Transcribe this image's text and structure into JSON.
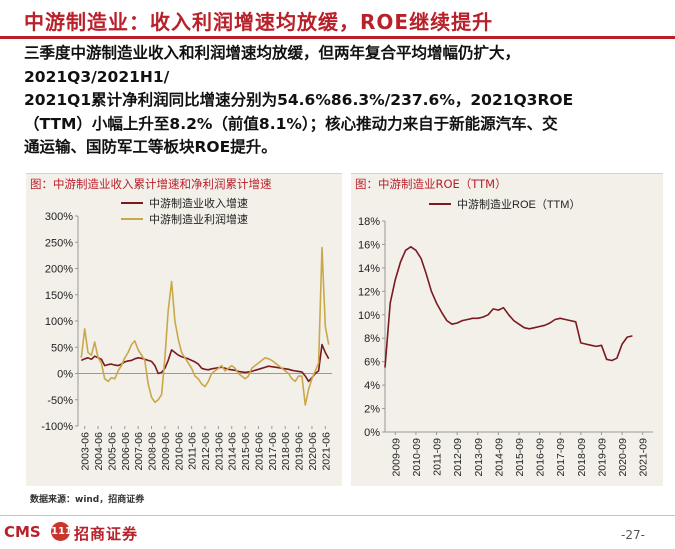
{
  "slide": {
    "title": "中游制造业：收入利润增速均放缓，ROE继续提升",
    "body_lines": [
      "三季度中游制造业收入和利润增速均放缓，但两年复合平均增幅仍扩大，",
      "2021Q3/2021H1/",
      "2021Q1累计净利润同比增速分别为54.6%86.3%/237.6%，2021Q3ROE",
      "（TTM）小幅上升至8.2%（前值8.1%）；核心推动力来自于新能源汽车、交",
      "通运输、国防军工等板块ROE提升。"
    ],
    "source": "数据来源：wind，招商证券",
    "logo_text": "CMS",
    "logo_badge": "111",
    "logo_cn": "招商证券",
    "page_number": "-27-"
  },
  "colors": {
    "accent": "#b8202a",
    "revenue": "#7a1a1f",
    "profit": "#c9a84a",
    "roe": "#7a1a1f",
    "panel_bg": "#f3f0ea"
  },
  "chart_data": [
    {
      "type": "line",
      "title": "图：中游制造业收入累计增速和净利润累计增速",
      "x_ticks": [
        "2003-06",
        "2004-06",
        "2005-06",
        "2006-06",
        "2007-06",
        "2008-06",
        "2009-06",
        "2010-06",
        "2011-06",
        "2012-06",
        "2013-06",
        "2014-06",
        "2015-06",
        "2016-06",
        "2017-06",
        "2018-06",
        "2019-06",
        "2020-06",
        "2021-06"
      ],
      "ylim": [
        -100,
        300
      ],
      "y_ticks": [
        -100,
        -50,
        0,
        50,
        100,
        150,
        200,
        250,
        300
      ],
      "y_tick_labels": [
        "-100%",
        "-50%",
        "0%",
        "50%",
        "100%",
        "150%",
        "200%",
        "250%",
        "300%"
      ],
      "legend_position": "top",
      "series": [
        {
          "name": "中游制造业收入增速",
          "x": [
            2003.25,
            2003.5,
            2003.75,
            2004,
            2004.25,
            2004.5,
            2004.75,
            2005,
            2005.25,
            2005.5,
            2005.75,
            2006,
            2006.25,
            2006.5,
            2006.75,
            2007,
            2007.25,
            2007.5,
            2007.75,
            2008,
            2008.25,
            2008.5,
            2008.75,
            2009,
            2009.25,
            2009.5,
            2009.75,
            2010,
            2010.25,
            2010.5,
            2010.75,
            2011,
            2011.25,
            2011.5,
            2011.75,
            2012,
            2012.25,
            2012.5,
            2012.75,
            2013,
            2013.25,
            2013.5,
            2013.75,
            2014,
            2014.25,
            2014.5,
            2014.75,
            2015,
            2015.25,
            2015.5,
            2015.75,
            2016,
            2016.25,
            2016.5,
            2016.75,
            2017,
            2017.25,
            2017.5,
            2017.75,
            2018,
            2018.25,
            2018.5,
            2018.75,
            2019,
            2019.25,
            2019.5,
            2019.75,
            2020,
            2020.25,
            2020.5,
            2020.75,
            2021,
            2021.25,
            2021.5,
            2021.75
          ],
          "values": [
            25,
            28,
            30,
            27,
            33,
            30,
            27,
            15,
            17,
            18,
            16,
            15,
            18,
            22,
            24,
            25,
            28,
            30,
            29,
            27,
            25,
            23,
            15,
            0,
            2,
            10,
            25,
            45,
            40,
            35,
            32,
            30,
            28,
            25,
            22,
            18,
            10,
            8,
            7,
            9,
            10,
            11,
            12,
            10,
            8,
            7,
            6,
            4,
            3,
            2,
            3,
            4,
            6,
            8,
            10,
            12,
            14,
            13,
            12,
            11,
            10,
            9,
            8,
            6,
            5,
            4,
            3,
            -5,
            -15,
            -8,
            0,
            5,
            55,
            40,
            28
          ]
        },
        {
          "name": "中游制造业利润增速",
          "x": [
            2003.25,
            2003.5,
            2003.75,
            2004,
            2004.25,
            2004.5,
            2004.75,
            2005,
            2005.25,
            2005.5,
            2005.75,
            2006,
            2006.25,
            2006.5,
            2006.75,
            2007,
            2007.25,
            2007.5,
            2007.75,
            2008,
            2008.25,
            2008.5,
            2008.75,
            2009,
            2009.25,
            2009.5,
            2009.75,
            2010,
            2010.25,
            2010.5,
            2010.75,
            2011,
            2011.25,
            2011.5,
            2011.75,
            2012,
            2012.25,
            2012.5,
            2012.75,
            2013,
            2013.25,
            2013.5,
            2013.75,
            2014,
            2014.25,
            2014.5,
            2014.75,
            2015,
            2015.25,
            2015.5,
            2015.75,
            2016,
            2016.25,
            2016.5,
            2016.75,
            2017,
            2017.25,
            2017.5,
            2017.75,
            2018,
            2018.25,
            2018.5,
            2018.75,
            2019,
            2019.25,
            2019.5,
            2019.75,
            2020,
            2020.25,
            2020.5,
            2020.75,
            2021,
            2021.25,
            2021.5,
            2021.75
          ],
          "values": [
            30,
            85,
            40,
            35,
            60,
            30,
            20,
            -10,
            -15,
            -8,
            -10,
            5,
            15,
            30,
            40,
            55,
            62,
            45,
            35,
            25,
            -20,
            -45,
            -55,
            -50,
            -40,
            30,
            120,
            175,
            100,
            65,
            40,
            30,
            20,
            10,
            -5,
            -10,
            -20,
            -25,
            -15,
            0,
            5,
            10,
            15,
            5,
            10,
            15,
            10,
            0,
            -5,
            -10,
            -5,
            10,
            15,
            20,
            25,
            30,
            28,
            25,
            20,
            15,
            10,
            5,
            0,
            -10,
            -15,
            -5,
            -5,
            -60,
            -30,
            -10,
            5,
            20,
            240,
            90,
            55
          ]
        }
      ]
    },
    {
      "type": "line",
      "title": "图：中游制造业ROE（TTM）",
      "x_ticks": [
        "2009-09",
        "2010-09",
        "2011-09",
        "2012-09",
        "2013-09",
        "2014-09",
        "2015-09",
        "2016-09",
        "2017-09",
        "2018-09",
        "2019-09",
        "2020-09",
        "2021-09"
      ],
      "ylim": [
        0,
        18
      ],
      "y_ticks": [
        0,
        2,
        4,
        6,
        8,
        10,
        12,
        14,
        16,
        18
      ],
      "y_tick_labels": [
        "0%",
        "2%",
        "4%",
        "6%",
        "8%",
        "10%",
        "12%",
        "14%",
        "16%",
        "18%"
      ],
      "legend_position": "top",
      "series": [
        {
          "name": "中游制造业ROE（TTM）",
          "x": [
            2009.75,
            2010,
            2010.25,
            2010.5,
            2010.75,
            2011,
            2011.25,
            2011.5,
            2011.75,
            2012,
            2012.25,
            2012.5,
            2012.75,
            2013,
            2013.25,
            2013.5,
            2013.75,
            2014,
            2014.25,
            2014.5,
            2014.75,
            2015,
            2015.25,
            2015.5,
            2015.75,
            2016,
            2016.25,
            2016.5,
            2016.75,
            2017,
            2017.25,
            2017.5,
            2017.75,
            2018,
            2018.25,
            2018.5,
            2018.75,
            2019,
            2019.25,
            2019.5,
            2019.75,
            2020,
            2020.25,
            2020.5,
            2020.75,
            2021,
            2021.25,
            2021.5,
            2021.75
          ],
          "values": [
            5.5,
            11,
            13,
            14.5,
            15.5,
            15.8,
            15.5,
            14.8,
            13.5,
            12,
            11,
            10.2,
            9.5,
            9.2,
            9.3,
            9.5,
            9.6,
            9.7,
            9.7,
            9.8,
            10,
            10.5,
            10.4,
            10.6,
            10,
            9.5,
            9.2,
            8.9,
            8.8,
            8.9,
            9,
            9.1,
            9.3,
            9.6,
            9.7,
            9.6,
            9.5,
            9.4,
            7.6,
            7.5,
            7.4,
            7.3,
            7.4,
            6.2,
            6.1,
            6.3,
            7.5,
            8.1,
            8.2
          ]
        }
      ]
    }
  ]
}
